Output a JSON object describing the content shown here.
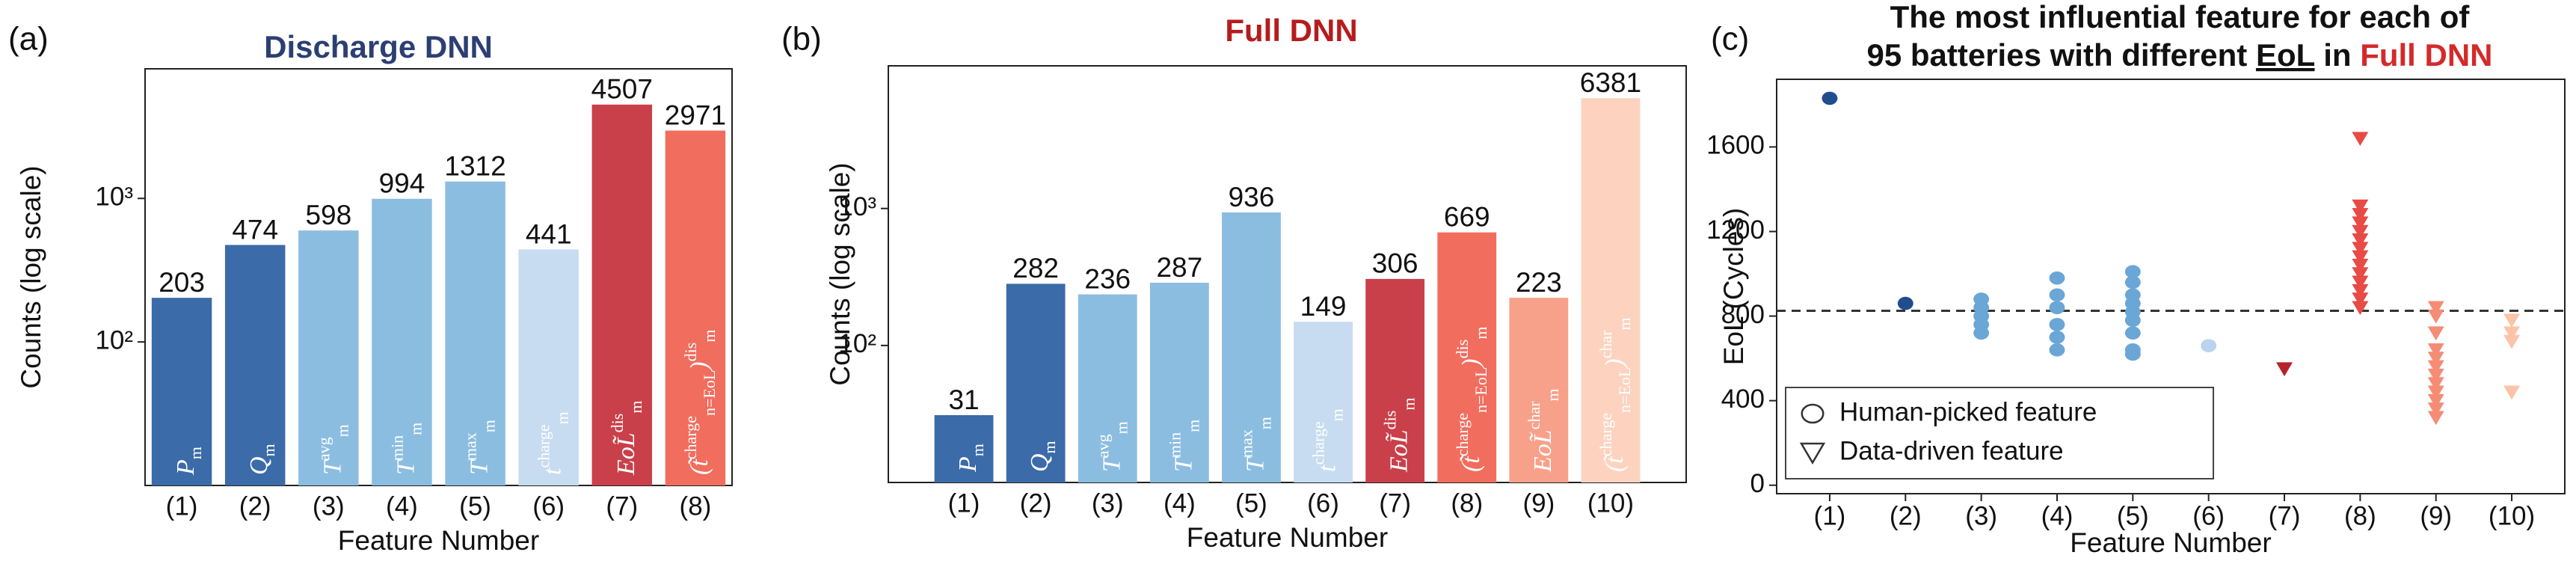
{
  "chart_data": [
    {
      "type": "bar",
      "panel_label": "(a)",
      "title": "Discharge DNN",
      "yscale": "log",
      "ylabel": "Counts (log scale)",
      "xlabel": "Feature Number",
      "categories": [
        "(1)",
        "(2)",
        "(3)",
        "(4)",
        "(5)",
        "(6)",
        "(7)",
        "(8)"
      ],
      "values": [
        203,
        474,
        598,
        994,
        1312,
        441,
        4507,
        2971
      ],
      "colors": [
        "#3b6ba8",
        "#3b6ba8",
        "#8bbde0",
        "#8bbde0",
        "#8bbde0",
        "#c7dcf0",
        "#c9404a",
        "#f16d5e"
      ],
      "bar_labels": [
        [
          {
            "t": "P"
          },
          {
            "t": "m",
            "s": "sub"
          }
        ],
        [
          {
            "t": "Q"
          },
          {
            "t": "m",
            "s": "sub"
          }
        ],
        [
          {
            "t": "T"
          },
          {
            "t": "avg",
            "s": "super"
          },
          {
            "t": "m",
            "s": "sub"
          }
        ],
        [
          {
            "t": "T"
          },
          {
            "t": "min",
            "s": "super"
          },
          {
            "t": "m",
            "s": "sub"
          }
        ],
        [
          {
            "t": "T"
          },
          {
            "t": "max",
            "s": "super"
          },
          {
            "t": "m",
            "s": "sub"
          }
        ],
        [
          {
            "t": "t"
          },
          {
            "t": "charge",
            "s": "super"
          },
          {
            "t": "m",
            "s": "sub"
          }
        ],
        [
          {
            "t": "EoL̃"
          },
          {
            "t": "dis",
            "s": "super"
          },
          {
            "t": "m",
            "s": "sub"
          }
        ],
        [
          {
            "t": "(t̃"
          },
          {
            "t": "charge",
            "s": "super"
          },
          {
            "t": "n=EoL",
            "s": "sub"
          },
          {
            "t": ")"
          },
          {
            "t": "dis",
            "s": "super"
          },
          {
            "t": "m",
            "s": "sub"
          }
        ]
      ],
      "ylim": [
        10,
        8000
      ],
      "yticks": [
        {
          "value": 100,
          "label": "10²"
        },
        {
          "value": 1000,
          "label": "10³"
        }
      ]
    },
    {
      "type": "bar",
      "panel_label": "(b)",
      "title": "Full DNN",
      "yscale": "log",
      "ylabel": "Counts (log scale)",
      "xlabel": "Feature Number",
      "categories": [
        "(1)",
        "(2)",
        "(3)",
        "(4)",
        "(5)",
        "(6)",
        "(7)",
        "(8)",
        "(9)",
        "(10)"
      ],
      "values": [
        31,
        282,
        236,
        287,
        936,
        149,
        306,
        669,
        223,
        6381
      ],
      "colors": [
        "#3b6ba8",
        "#3b6ba8",
        "#8bbde0",
        "#8bbde0",
        "#8bbde0",
        "#c7dcf0",
        "#c9404a",
        "#f16d5e",
        "#f8a18a",
        "#fdd3c0"
      ],
      "bar_labels": [
        [
          {
            "t": "P"
          },
          {
            "t": "m",
            "s": "sub"
          }
        ],
        [
          {
            "t": "Q"
          },
          {
            "t": "m",
            "s": "sub"
          }
        ],
        [
          {
            "t": "T"
          },
          {
            "t": "avg",
            "s": "super"
          },
          {
            "t": "m",
            "s": "sub"
          }
        ],
        [
          {
            "t": "T"
          },
          {
            "t": "min",
            "s": "super"
          },
          {
            "t": "m",
            "s": "sub"
          }
        ],
        [
          {
            "t": "T"
          },
          {
            "t": "max",
            "s": "super"
          },
          {
            "t": "m",
            "s": "sub"
          }
        ],
        [
          {
            "t": "t"
          },
          {
            "t": "charge",
            "s": "super"
          },
          {
            "t": "m",
            "s": "sub"
          }
        ],
        [
          {
            "t": "EoL̃"
          },
          {
            "t": "dis",
            "s": "super"
          },
          {
            "t": "m",
            "s": "sub"
          }
        ],
        [
          {
            "t": "(t̃"
          },
          {
            "t": "charge",
            "s": "super"
          },
          {
            "t": "n=EoL",
            "s": "sub"
          },
          {
            "t": ")"
          },
          {
            "t": "dis",
            "s": "super"
          },
          {
            "t": "m",
            "s": "sub"
          }
        ],
        [
          {
            "t": "EoL̃"
          },
          {
            "t": "char",
            "s": "super"
          },
          {
            "t": "m",
            "s": "sub"
          }
        ],
        [
          {
            "t": "(t̃"
          },
          {
            "t": "charge",
            "s": "super"
          },
          {
            "t": "n=EoL",
            "s": "sub"
          },
          {
            "t": ")"
          },
          {
            "t": "char",
            "s": "super"
          },
          {
            "t": "m",
            "s": "sub"
          }
        ]
      ],
      "ylim": [
        10,
        11000
      ],
      "yticks": [
        {
          "value": 100,
          "label": "10²"
        },
        {
          "value": 1000,
          "label": "10³"
        }
      ]
    },
    {
      "type": "scatter",
      "panel_label": "(c)",
      "title_lines": [
        [
          "The most influential feature for each of"
        ],
        [
          "95 batteries with different",
          "EoL",
          "in",
          "Full DNN"
        ]
      ],
      "ylabel": "EoL (Cycles)",
      "xlabel": "Feature Number",
      "xlim": [
        0.3,
        10.7
      ],
      "xticks": [
        {
          "value": 1,
          "label": "(1)"
        },
        {
          "value": 2,
          "label": "(2)"
        },
        {
          "value": 3,
          "label": "(3)"
        },
        {
          "value": 4,
          "label": "(4)"
        },
        {
          "value": 5,
          "label": "(5)"
        },
        {
          "value": 6,
          "label": "(6)"
        },
        {
          "value": 7,
          "label": "(7)"
        },
        {
          "value": 8,
          "label": "(8)"
        },
        {
          "value": 9,
          "label": "(9)"
        },
        {
          "value": 10,
          "label": "(10)"
        }
      ],
      "ylim": [
        -40,
        1920
      ],
      "yticks": [
        0,
        400,
        800,
        1200,
        1600
      ],
      "hline": 825,
      "legend": {
        "position": "lower left",
        "entries": [
          {
            "label": "Human-picked feature",
            "marker": "circle"
          },
          {
            "label": "Data-driven feature",
            "marker": "triangle-down"
          }
        ]
      },
      "series": [
        {
          "marker": "circle",
          "color": "#1f4e8f",
          "x": [
            1
          ],
          "values": [
            1830
          ]
        },
        {
          "marker": "circle",
          "color": "#1f4e8f",
          "x": [
            2
          ],
          "values": [
            860
          ]
        },
        {
          "marker": "circle",
          "color": "#6aa6d6",
          "x": [
            3,
            3,
            3,
            3,
            3
          ],
          "values": [
            880,
            840,
            800,
            760,
            720
          ]
        },
        {
          "marker": "circle",
          "color": "#6aa6d6",
          "x": [
            4,
            4,
            4,
            4,
            4,
            4
          ],
          "values": [
            980,
            900,
            840,
            760,
            700,
            640
          ]
        },
        {
          "marker": "circle",
          "color": "#6aa6d6",
          "x": [
            5,
            5,
            5,
            5,
            5,
            5,
            5,
            5,
            5
          ],
          "values": [
            1010,
            960,
            900,
            860,
            820,
            780,
            720,
            640,
            620
          ]
        },
        {
          "marker": "circle",
          "color": "#b9d4ec",
          "x": [
            6
          ],
          "values": [
            660
          ]
        },
        {
          "marker": "triangle-down",
          "color": "#b5222b",
          "x": [
            7
          ],
          "values": [
            550
          ]
        },
        {
          "marker": "triangle-down",
          "color": "#e84a45",
          "x": [
            8,
            8,
            8,
            8,
            8,
            8,
            8,
            8,
            8,
            8,
            8,
            8,
            8,
            8
          ],
          "values": [
            1640,
            1320,
            1280,
            1240,
            1200,
            1160,
            1120,
            1080,
            1040,
            1000,
            960,
            920,
            880,
            840
          ]
        },
        {
          "marker": "triangle-down",
          "color": "#f58c75",
          "x": [
            9,
            9,
            9,
            9,
            9,
            9,
            9,
            9,
            9,
            9,
            9,
            9
          ],
          "values": [
            840,
            800,
            720,
            640,
            600,
            560,
            520,
            480,
            440,
            400,
            360,
            320
          ]
        },
        {
          "marker": "triangle-down",
          "color": "#fbc3a8",
          "x": [
            10,
            10,
            10,
            10
          ],
          "values": [
            780,
            720,
            680,
            440
          ]
        }
      ]
    }
  ]
}
